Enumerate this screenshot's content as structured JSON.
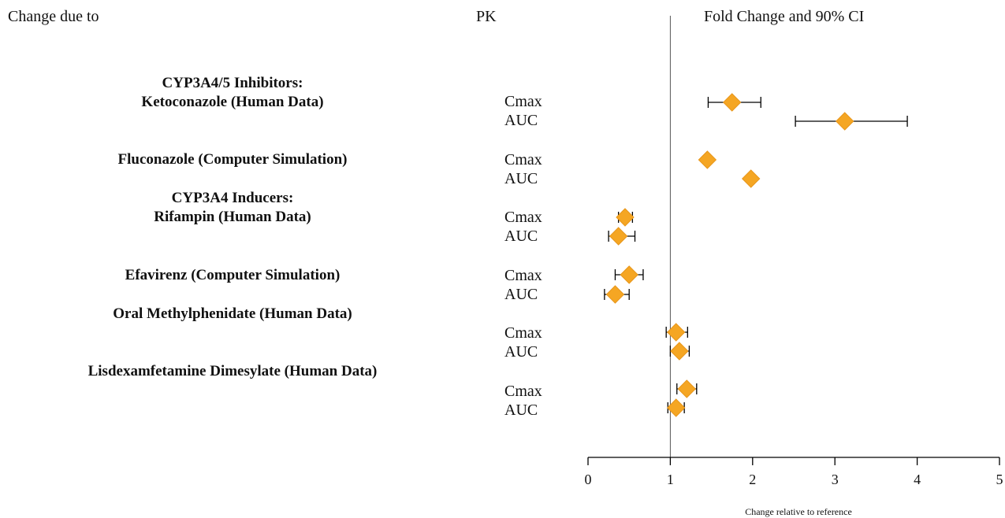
{
  "headers": {
    "change_due_to": "Change due to",
    "pk": "PK",
    "fold_change": "Fold Change and 90% CI"
  },
  "groups": [
    {
      "lines": [
        "CYP3A4/5 Inhibitors:",
        "Ketoconazole (Human Data)"
      ]
    },
    {
      "lines": [
        "Fluconazole (Computer Simulation)"
      ]
    },
    {
      "lines": [
        "CYP3A4 Inducers:",
        "Rifampin  (Human Data)"
      ]
    },
    {
      "lines": [
        "Efavirenz (Computer Simulation)"
      ]
    },
    {
      "lines": [
        "Oral Methylphenidate (Human Data)"
      ]
    },
    {
      "lines": [
        "Lisdexamfetamine Dimesylate (Human Data)"
      ]
    }
  ],
  "colors": {
    "marker": "#F5A623",
    "marker_edge": "#E8961A",
    "axis": "#000000",
    "reference_line": "#555555"
  },
  "chart_data": {
    "type": "forest",
    "title": "Fold Change and 90% CI",
    "xlabel": "Change relative to reference",
    "xlim": [
      0,
      5
    ],
    "xticks": [
      0,
      1,
      2,
      3,
      4,
      5
    ],
    "reference_value": 1,
    "marker": "diamond",
    "rows": [
      {
        "group": "Ketoconazole (Human Data)",
        "pk": "Cmax",
        "estimate": 1.75,
        "lower": 1.46,
        "upper": 2.1
      },
      {
        "group": "Ketoconazole (Human Data)",
        "pk": "AUC",
        "estimate": 3.12,
        "lower": 2.52,
        "upper": 3.88
      },
      {
        "group": "Fluconazole (Computer Simulation)",
        "pk": "Cmax",
        "estimate": 1.45,
        "lower": 1.42,
        "upper": 1.48
      },
      {
        "group": "Fluconazole (Computer Simulation)",
        "pk": "AUC",
        "estimate": 1.98,
        "lower": 1.95,
        "upper": 2.01
      },
      {
        "group": "Rifampin  (Human Data)",
        "pk": "Cmax",
        "estimate": 0.45,
        "lower": 0.37,
        "upper": 0.54
      },
      {
        "group": "Rifampin  (Human Data)",
        "pk": "AUC",
        "estimate": 0.37,
        "lower": 0.25,
        "upper": 0.57
      },
      {
        "group": "Efavirenz (Computer Simulation)",
        "pk": "Cmax",
        "estimate": 0.5,
        "lower": 0.33,
        "upper": 0.67
      },
      {
        "group": "Efavirenz (Computer Simulation)",
        "pk": "AUC",
        "estimate": 0.33,
        "lower": 0.2,
        "upper": 0.5
      },
      {
        "group": "Oral Methylphenidate (Human Data)",
        "pk": "Cmax",
        "estimate": 1.07,
        "lower": 0.95,
        "upper": 1.21
      },
      {
        "group": "Oral Methylphenidate (Human Data)",
        "pk": "AUC",
        "estimate": 1.11,
        "lower": 1.0,
        "upper": 1.23
      },
      {
        "group": "Lisdexamfetamine Dimesylate (Human Data)",
        "pk": "Cmax",
        "estimate": 1.2,
        "lower": 1.08,
        "upper": 1.32
      },
      {
        "group": "Lisdexamfetamine Dimesylate (Human Data)",
        "pk": "AUC",
        "estimate": 1.07,
        "lower": 0.97,
        "upper": 1.17
      }
    ]
  }
}
